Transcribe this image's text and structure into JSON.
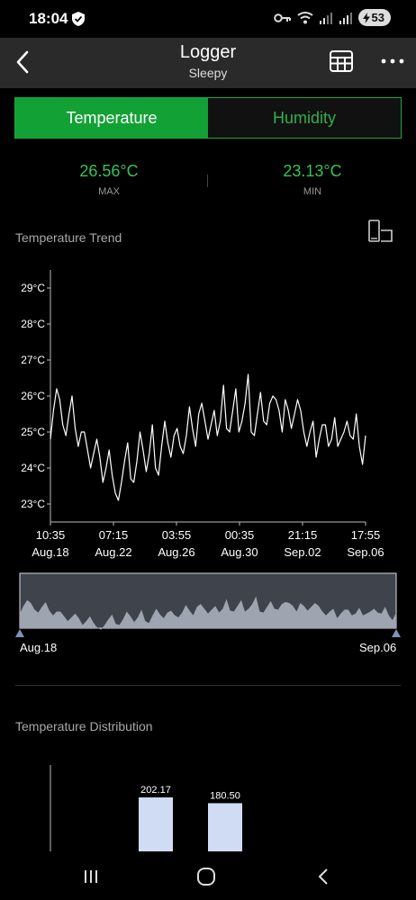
{
  "status_bar": {
    "time": "18:04",
    "battery": "53"
  },
  "header": {
    "title": "Logger",
    "subtitle": "Sleepy"
  },
  "tabs": [
    {
      "label": "Temperature",
      "active": true
    },
    {
      "label": "Humidity",
      "active": false
    }
  ],
  "stats": {
    "max_value": "26.56°C",
    "max_label": "MAX",
    "min_value": "23.13°C",
    "min_label": "MIN"
  },
  "trend": {
    "title": "Temperature Trend"
  },
  "chart_data": [
    {
      "type": "line",
      "title": "Temperature Trend",
      "y_ticks": [
        "29°C",
        "28°C",
        "27°C",
        "26°C",
        "25°C",
        "24°C",
        "23°C"
      ],
      "ylim": [
        22.5,
        29.5
      ],
      "x_ticks": [
        {
          "time": "10:35",
          "date": "Aug.18"
        },
        {
          "time": "07:15",
          "date": "Aug.22"
        },
        {
          "time": "03:55",
          "date": "Aug.26"
        },
        {
          "time": "00:35",
          "date": "Aug.30"
        },
        {
          "time": "21:15",
          "date": "Sep.02"
        },
        {
          "time": "17:55",
          "date": "Sep.06"
        }
      ],
      "x_hours_per_tick": 92.67,
      "values": [
        24.8,
        25.6,
        26.2,
        25.9,
        25.2,
        24.9,
        25.5,
        26.0,
        25.1,
        24.6,
        25.0,
        25.0,
        24.5,
        24.0,
        24.4,
        24.8,
        24.3,
        23.6,
        24.0,
        24.5,
        23.8,
        23.3,
        23.1,
        23.6,
        24.2,
        24.7,
        23.7,
        23.6,
        24.2,
        25.0,
        24.5,
        23.9,
        24.4,
        25.2,
        24.0,
        23.8,
        24.6,
        25.3,
        24.7,
        24.3,
        24.9,
        25.1,
        24.6,
        24.4,
        24.9,
        25.7,
        25.1,
        24.6,
        25.5,
        25.8,
        25.3,
        24.8,
        25.2,
        25.6,
        24.9,
        25.3,
        26.3,
        25.1,
        25.0,
        25.6,
        26.2,
        25.0,
        25.3,
        25.8,
        26.6,
        25.0,
        24.9,
        25.5,
        26.1,
        25.3,
        25.2,
        25.8,
        26.0,
        25.9,
        25.6,
        25.0,
        25.9,
        25.6,
        25.1,
        25.5,
        25.9,
        25.6,
        25.0,
        24.6,
        25.0,
        25.3,
        24.3,
        24.8,
        25.2,
        25.2,
        24.6,
        24.8,
        25.4,
        24.6,
        24.8,
        25.0,
        25.3,
        24.9,
        24.8,
        25.5,
        24.6,
        24.1,
        24.9
      ]
    },
    {
      "type": "bar",
      "title": "Temperature Distribution",
      "values": [
        202.17,
        180.5
      ]
    }
  ],
  "range": {
    "start_label": "Aug.18",
    "end_label": "Sep.06"
  },
  "distribution": {
    "title": "Temperature Distribution"
  },
  "colors": {
    "accent": "#12a135",
    "line": "#ffffff",
    "range_fill": "#9ea4b0",
    "bar": "#cfdcf4"
  }
}
